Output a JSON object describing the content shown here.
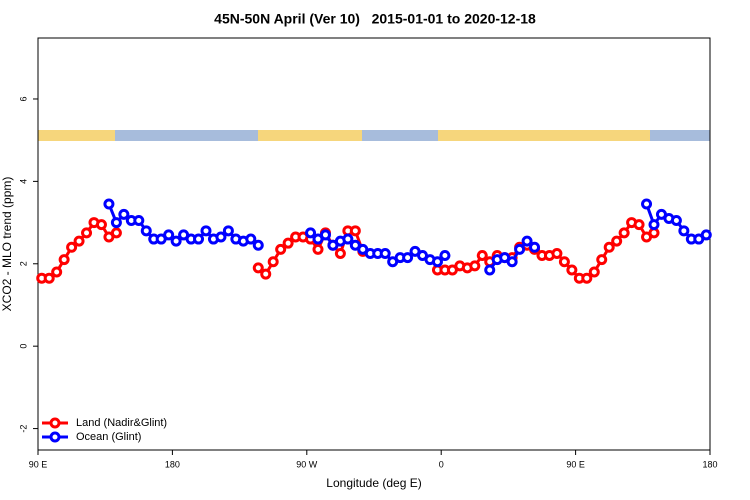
{
  "chart_data": {
    "type": "line",
    "title": "45N-50N April (Ver 10)   2015-01-01 to 2020-12-18",
    "x_label": "Longitude (deg E)",
    "y_label": "XCO2 - MLO trend (ppm)",
    "xlim": [
      90,
      540
    ],
    "ylim": [
      -2.52,
      7.48
    ],
    "xticks": [
      {
        "value": 90,
        "label": "90 E"
      },
      {
        "value": 180,
        "label": "180"
      },
      {
        "value": 270,
        "label": "90 W"
      },
      {
        "value": 360,
        "label": "0"
      },
      {
        "value": 450,
        "label": "90 E"
      },
      {
        "value": 540,
        "label": "180"
      }
    ],
    "yticks": [
      -2,
      0,
      2,
      4,
      6
    ],
    "legend": "bottomleft",
    "x": [
      92.5,
      97.5,
      102.5,
      107.5,
      112.5,
      117.5,
      122.5,
      127.5,
      132.5,
      137.5,
      142.5,
      147.5,
      152.5,
      157.5,
      162.5,
      167.5,
      172.5,
      177.5,
      182.5,
      187.5,
      192.5,
      197.5,
      202.5,
      207.5,
      212.5,
      217.5,
      222.5,
      227.5,
      232.5,
      237.5,
      242.5,
      247.5,
      252.5,
      257.5,
      262.5,
      267.5,
      272.5,
      277.5,
      282.5,
      287.5,
      292.5,
      297.5,
      302.5,
      307.5,
      312.5,
      317.5,
      322.5,
      327.5,
      332.5,
      337.5,
      342.5,
      347.5,
      352.5,
      357.5,
      362.5,
      367.5,
      372.5,
      377.5,
      382.5,
      387.5,
      392.5,
      397.5,
      402.5,
      407.5,
      412.5,
      417.5,
      422.5,
      427.5,
      432.5,
      437.5,
      442.5,
      447.5,
      452.5,
      457.5,
      462.5,
      467.5,
      472.5,
      477.5,
      482.5,
      487.5,
      492.5,
      497.5,
      502.5,
      507.5,
      512.5,
      517.5,
      522.5,
      527.5,
      532.5,
      537.5
    ],
    "series": [
      {
        "name": "Land (Nadir&Glint)",
        "color": "#ff0000",
        "values": [
          1.65,
          1.65,
          1.8,
          2.1,
          2.4,
          2.55,
          2.75,
          3.0,
          2.95,
          2.65,
          2.75,
          null,
          null,
          null,
          null,
          null,
          null,
          null,
          null,
          null,
          null,
          null,
          null,
          null,
          null,
          null,
          null,
          null,
          null,
          1.9,
          1.75,
          2.05,
          2.35,
          2.5,
          2.65,
          2.65,
          2.6,
          2.35,
          2.75,
          2.45,
          2.25,
          2.8,
          2.8,
          2.3,
          null,
          null,
          null,
          null,
          null,
          null,
          null,
          null,
          null,
          1.85,
          1.85,
          1.85,
          1.95,
          1.9,
          1.95,
          2.2,
          2.05,
          2.2,
          2.15,
          2.15,
          2.4,
          2.45,
          2.35,
          2.2,
          2.2,
          2.25,
          2.05,
          1.85,
          1.65,
          1.65,
          1.8,
          2.1,
          2.4,
          2.55,
          2.75,
          3.0,
          2.95,
          2.65,
          2.75,
          null,
          null,
          null,
          null,
          null,
          null,
          null
        ]
      },
      {
        "name": "Ocean (Glint)",
        "color": "#0000ff",
        "values": [
          null,
          null,
          null,
          null,
          null,
          null,
          null,
          null,
          null,
          3.45,
          3.0,
          3.2,
          3.05,
          3.05,
          2.8,
          2.6,
          2.6,
          2.7,
          2.55,
          2.7,
          2.6,
          2.6,
          2.8,
          2.6,
          2.65,
          2.8,
          2.6,
          2.55,
          2.6,
          2.45,
          null,
          null,
          null,
          null,
          null,
          null,
          2.75,
          2.6,
          2.7,
          2.45,
          2.55,
          2.6,
          2.45,
          2.35,
          2.25,
          2.25,
          2.25,
          2.05,
          2.15,
          2.15,
          2.3,
          2.2,
          2.1,
          2.05,
          2.2,
          null,
          null,
          null,
          null,
          null,
          1.85,
          2.1,
          2.15,
          2.05,
          2.35,
          2.55,
          2.4,
          null,
          null,
          null,
          null,
          null,
          null,
          null,
          null,
          null,
          null,
          null,
          null,
          null,
          null,
          3.45,
          2.95,
          3.2,
          3.1,
          3.05,
          2.8,
          2.6,
          2.6,
          2.7
        ]
      }
    ]
  }
}
